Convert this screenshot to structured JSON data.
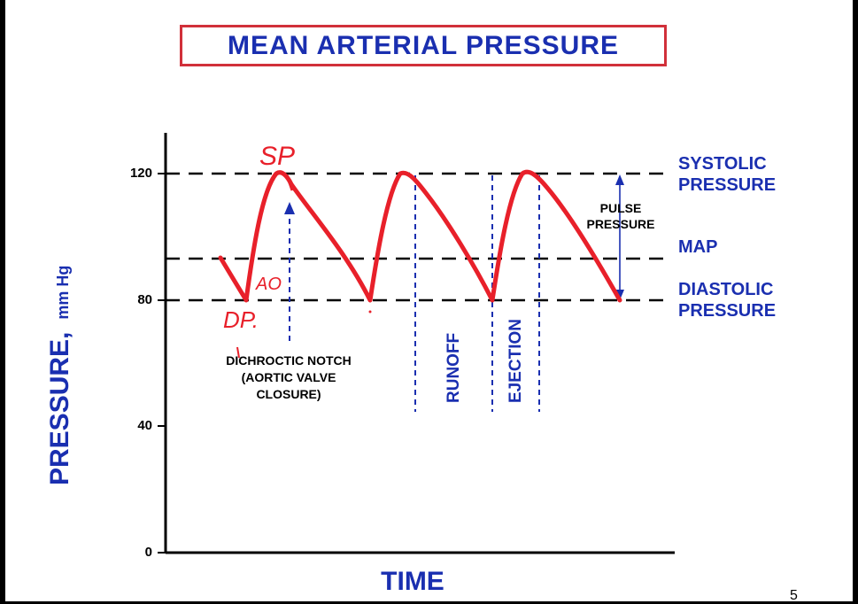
{
  "title": "MEAN ARTERIAL PRESSURE",
  "axes": {
    "y_label_main": "PRESSURE,",
    "y_label_units": "mm Hg",
    "x_label": "TIME",
    "y_ticks": [
      "120",
      "80",
      "40",
      "0"
    ]
  },
  "levels": {
    "systolic": [
      "SYSTOLIC",
      "PRESSURE"
    ],
    "map": "MAP",
    "diastolic": [
      "DIASTOLIC",
      "PRESSURE"
    ]
  },
  "annotations": {
    "notch": [
      "DICHROCTIC NOTCH",
      "(AORTIC VALVE",
      "CLOSURE)"
    ],
    "pulse_pressure": [
      "PULSE",
      "PRESSURE"
    ],
    "runoff": "RUNOFF",
    "ejection": "EJECTION"
  },
  "handwriting": {
    "sp": "SP",
    "ao": "AO",
    "dp": "DP."
  },
  "page_number": "5",
  "colors": {
    "blue": "#1a2fb0",
    "red": "#e8202a",
    "title_border": "#d1303a"
  }
}
